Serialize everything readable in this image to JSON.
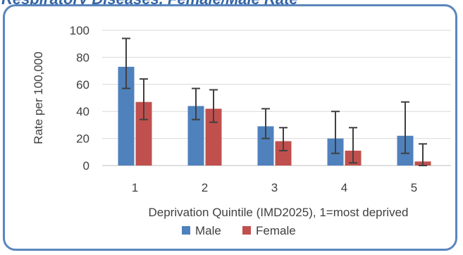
{
  "title": "Respiratory Diseases, Female/Male Rate",
  "chart_data": {
    "type": "bar",
    "categories": [
      "1",
      "2",
      "3",
      "4",
      "5"
    ],
    "series": [
      {
        "name": "Male",
        "color": "#4f81bd",
        "values": [
          73,
          44,
          29,
          20,
          22
        ],
        "error_low": [
          57,
          34,
          20,
          9,
          9
        ],
        "error_high": [
          94,
          57,
          42,
          40,
          47
        ]
      },
      {
        "name": "Female",
        "color": "#c0504d",
        "values": [
          47,
          42,
          18,
          11,
          3
        ],
        "error_low": [
          34,
          32,
          11,
          2,
          0
        ],
        "error_high": [
          64,
          56,
          28,
          28,
          16
        ]
      }
    ],
    "xlabel": "Deprivation Quintile (IMD2025), 1=most deprived",
    "ylabel": "Rate per 100,000",
    "ylim": [
      0,
      100
    ],
    "yticks": [
      0,
      20,
      40,
      60,
      80,
      100
    ],
    "grid": true,
    "error_bar_color": "#404040",
    "legend": "bottom"
  }
}
